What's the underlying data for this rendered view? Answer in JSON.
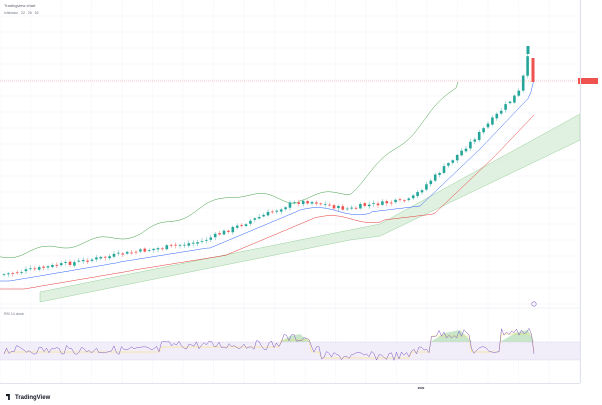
{
  "header": {
    "title": "Tradingview chart"
  },
  "indicators": {
    "main": [
      "Ichimoku",
      "22",
      "26",
      "52"
    ],
    "rsi": {
      "label": "RSI",
      "values": [
        "14",
        "close"
      ],
      "current": ""
    }
  },
  "price_tag": "",
  "scale_label": "",
  "yaxis_labels": [
    "",
    "",
    "",
    "",
    "",
    "",
    "",
    "",
    "",
    "",
    "",
    "",
    "",
    "",
    "",
    "",
    ""
  ],
  "xaxis_labels": [
    "",
    "",
    "",
    "",
    "",
    "",
    "",
    "",
    "",
    "",
    "",
    "",
    "",
    "",
    "",
    "",
    "",
    "",
    ""
  ],
  "xaxis_bold": "2020",
  "logo": "TradingView",
  "colors": {
    "up": "#26a69a",
    "down": "#ef5350",
    "ma_fast": "#2962ff",
    "ma_slow": "#e53935",
    "cloud": "#c8e6c9",
    "rsi": "#7e57c2",
    "lagging": "#43a047"
  }
}
